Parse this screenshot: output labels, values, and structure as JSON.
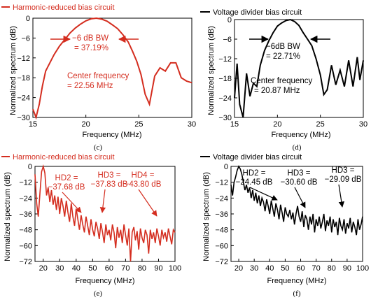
{
  "colors": {
    "red": "#d42d1f",
    "black": "#000000"
  },
  "chart_data": [
    {
      "type": "line",
      "panel_label": "(c)",
      "legend": "Harmonic-reduced bias circuit",
      "xlabel": "Frequency (MHz)",
      "ylabel": "Normalized spectrum (dB)",
      "xlim": [
        15,
        30
      ],
      "ylim": [
        -30,
        0
      ],
      "xticks": [
        15,
        20,
        25,
        30
      ],
      "yticks": [
        0,
        -6,
        -12,
        -18,
        -24,
        -30
      ],
      "tick_labels_x": [
        "15",
        "20",
        "25",
        "30"
      ],
      "tick_labels_y": [
        "0",
        "−6",
        "−12",
        "−18",
        "−24",
        "−30"
      ],
      "color": "#d42d1f",
      "series": [
        {
          "x": [
            15,
            15.3,
            15.6,
            15.9,
            16.2,
            16.6,
            17,
            17.5,
            18,
            18.5,
            19,
            19.5,
            20,
            20.5,
            21,
            21.5,
            22,
            22.5,
            23,
            23.5,
            24,
            24.4,
            24.8,
            25.2,
            25.6,
            26,
            26.5,
            27,
            27.5,
            28,
            28.5,
            29,
            29.5,
            30
          ],
          "y": [
            -27.5,
            -30,
            -26,
            -20.5,
            -16,
            -13.5,
            -11,
            -8.5,
            -6.5,
            -4.5,
            -3,
            -1.8,
            -0.8,
            -0.2,
            0,
            -0.3,
            -0.9,
            -2,
            -3.2,
            -5,
            -7.2,
            -10,
            -13,
            -17,
            -23,
            -26,
            -17.5,
            -15,
            -16,
            -13.5,
            -13.5,
            -18,
            -19,
            -19.5
          ]
        }
      ],
      "bw_text": [
        "−6 dB BW",
        "= 37.19%"
      ],
      "cf_text": [
        "Center frequency",
        "= 22.56 MHz"
      ]
    },
    {
      "type": "line",
      "panel_label": "(d)",
      "legend": "Voltage divider bias circuit",
      "xlabel": "Frequency (MHz)",
      "ylabel": "Normalized spectrum (dB)",
      "xlim": [
        15,
        30
      ],
      "ylim": [
        -30,
        0
      ],
      "xticks": [
        15,
        20,
        25,
        30
      ],
      "yticks": [
        0,
        -6,
        -12,
        -18,
        -24,
        -30
      ],
      "tick_labels_x": [
        "15",
        "20",
        "25",
        "30"
      ],
      "tick_labels_y": [
        "0",
        "−6",
        "−12",
        "−18",
        "−24",
        "−30"
      ],
      "color": "#000000",
      "series": [
        {
          "x": [
            15,
            15.3,
            15.6,
            16,
            16.4,
            16.8,
            17.2,
            17.6,
            18,
            18.5,
            19,
            19.5,
            20,
            20.5,
            21,
            21.5,
            22,
            22.5,
            23,
            23.5,
            24,
            24.5,
            25,
            25.4,
            25.8,
            26.3,
            26.8,
            27.3,
            27.8,
            28.3,
            28.8,
            29.3,
            29.6,
            30
          ],
          "y": [
            -24,
            -13.5,
            -26,
            -30,
            -16.5,
            -23.5,
            -19.5,
            -20.5,
            -14,
            -9.5,
            -6.5,
            -4,
            -2,
            -1,
            -0.3,
            0,
            -0.6,
            -1.8,
            -4,
            -6,
            -8,
            -12,
            -17,
            -23,
            -21.5,
            -14,
            -20,
            -15.5,
            -20.5,
            -12.5,
            -20.5,
            -11.5,
            -18.5,
            -12.5
          ]
        }
      ],
      "bw_text": [
        "−6dB BW",
        "= 22.71%"
      ],
      "cf_text": [
        "Center frequency",
        "= 20.87 MHz"
      ]
    },
    {
      "type": "line",
      "panel_label": "(e)",
      "legend": "Harmonic-reduced bias circuit",
      "xlabel": "Frequency (MHz)",
      "ylabel": "Normalized spectrum (dB)",
      "xlim": [
        15,
        100
      ],
      "ylim": [
        -72,
        0
      ],
      "xticks": [
        20,
        30,
        40,
        50,
        60,
        70,
        80,
        90,
        100
      ],
      "yticks": [
        0,
        -12,
        -24,
        -36,
        -48,
        -60,
        -72
      ],
      "tick_labels_x": [
        "20",
        "30",
        "40",
        "50",
        "60",
        "70",
        "80",
        "90",
        "100"
      ],
      "tick_labels_y": [
        "0",
        "−12",
        "−24",
        "−36",
        "−48",
        "−60",
        "−72"
      ],
      "color": "#d42d1f",
      "series": [
        {
          "x": [
            15,
            16,
            17,
            18,
            19,
            20,
            21,
            22,
            23,
            24,
            25,
            26,
            27,
            28,
            29,
            30,
            31,
            32,
            33,
            34,
            35,
            36,
            37,
            38,
            39,
            40,
            41,
            42,
            43,
            44,
            45,
            46,
            47,
            48,
            49,
            50,
            51,
            52,
            53,
            54,
            55,
            56,
            57,
            58,
            59,
            60,
            61,
            62,
            63,
            64,
            65,
            66,
            67,
            68,
            69,
            70,
            71,
            72,
            73,
            74,
            75,
            76,
            77,
            78,
            79,
            80,
            81,
            82,
            83,
            84,
            85,
            86,
            87,
            88,
            89,
            90,
            91,
            92,
            93,
            94,
            95,
            96,
            97,
            98,
            99,
            100
          ],
          "y": [
            -6,
            -28,
            -38,
            -20,
            -4,
            0,
            -5,
            -22,
            -16,
            -27,
            -18,
            -29,
            -22,
            -33,
            -23,
            -36,
            -24,
            -30,
            -38,
            -26,
            -35,
            -42,
            -28,
            -38,
            -45,
            -32,
            -40,
            -48,
            -37,
            -44,
            -50,
            -38,
            -45,
            -52,
            -40,
            -48,
            -53,
            -42,
            -47,
            -55,
            -43,
            -50,
            -58,
            -44,
            -52,
            -48,
            -56,
            -44,
            -50,
            -62,
            -46,
            -54,
            -48,
            -58,
            -44,
            -52,
            -60,
            -47,
            -72,
            -50,
            -46,
            -56,
            -49,
            -63,
            -47,
            -54,
            -58,
            -48,
            -52,
            -66,
            -48,
            -55,
            -50,
            -58,
            -47,
            -53,
            -60,
            -48,
            -54,
            -50,
            -57,
            -47,
            -53,
            -59,
            -48,
            -50
          ]
        }
      ],
      "annotations": [
        {
          "lines": [
            "HD2 =",
            "−37.68 dB"
          ],
          "x": 42,
          "y": -37.68
        },
        {
          "lines": [
            "HD3 =",
            "−37.83 dB"
          ],
          "x": 56,
          "y": -37.83
        },
        {
          "lines": [
            "HD4 =",
            "−43.80 dB"
          ],
          "x": 88,
          "y": -43.8
        }
      ]
    },
    {
      "type": "line",
      "panel_label": "(f)",
      "legend": "Voltage divider bias circuit",
      "xlabel": "Frequency (MHz)",
      "ylabel": "Normalized spectrum (dB)",
      "xlim": [
        15,
        100
      ],
      "ylim": [
        -72,
        0
      ],
      "xticks": [
        20,
        30,
        40,
        50,
        60,
        70,
        80,
        90,
        100
      ],
      "tick_labels_x": [
        "20",
        "30",
        "40",
        "50",
        "60",
        "70",
        "80",
        "90",
        "100"
      ],
      "yticks": [
        0,
        -12,
        -24,
        -36,
        -48,
        -60,
        -72
      ],
      "tick_labels_y": [
        "0",
        "−12",
        "−24",
        "−36",
        "−48",
        "−60",
        "−72"
      ],
      "color": "#000000",
      "series": [
        {
          "x": [
            15,
            16,
            17,
            18,
            19,
            20,
            21,
            22,
            23,
            24,
            25,
            26,
            27,
            28,
            29,
            30,
            31,
            32,
            33,
            34,
            35,
            36,
            37,
            38,
            39,
            40,
            41,
            42,
            43,
            44,
            45,
            46,
            47,
            48,
            49,
            50,
            51,
            52,
            53,
            54,
            55,
            56,
            57,
            58,
            59,
            60,
            61,
            62,
            63,
            64,
            65,
            66,
            67,
            68,
            69,
            70,
            71,
            72,
            73,
            74,
            75,
            76,
            77,
            78,
            79,
            80,
            81,
            82,
            83,
            84,
            85,
            86,
            87,
            88,
            89,
            90,
            91,
            92,
            93,
            94,
            95,
            96,
            97,
            98,
            99,
            100
          ],
          "y": [
            -14,
            -22,
            -12,
            -8,
            -3,
            0,
            -2,
            -6,
            -12,
            -18,
            -14,
            -20,
            -16,
            -24,
            -18,
            -26,
            -20,
            -28,
            -22,
            -30,
            -24,
            -27,
            -34,
            -25,
            -30,
            -36,
            -26,
            -32,
            -38,
            -28,
            -33,
            -40,
            -29,
            -35,
            -42,
            -31,
            -36,
            -38,
            -33,
            -40,
            -35,
            -44,
            -36,
            -30,
            -38,
            -42,
            -34,
            -46,
            -37,
            -40,
            -48,
            -38,
            -44,
            -36,
            -50,
            -40,
            -45,
            -38,
            -47,
            -42,
            -36,
            -49,
            -41,
            -45,
            -38,
            -50,
            -40,
            -46,
            -42,
            -52,
            -39,
            -45,
            -48,
            -40,
            -51,
            -43,
            -47,
            -39,
            -50,
            -42,
            -46,
            -52,
            -40,
            -48,
            -44,
            -38
          ]
        }
      ],
      "annotations": [
        {
          "lines": [
            "HD2 =",
            "−24.45 dB"
          ],
          "x": 38,
          "y": -24.45
        },
        {
          "lines": [
            "HD3 =",
            "−30.60 dB"
          ],
          "x": 60,
          "y": -30.6
        },
        {
          "lines": [
            "HD3 =",
            "−29.09 dB"
          ],
          "x": 82,
          "y": -29.09
        }
      ]
    }
  ]
}
